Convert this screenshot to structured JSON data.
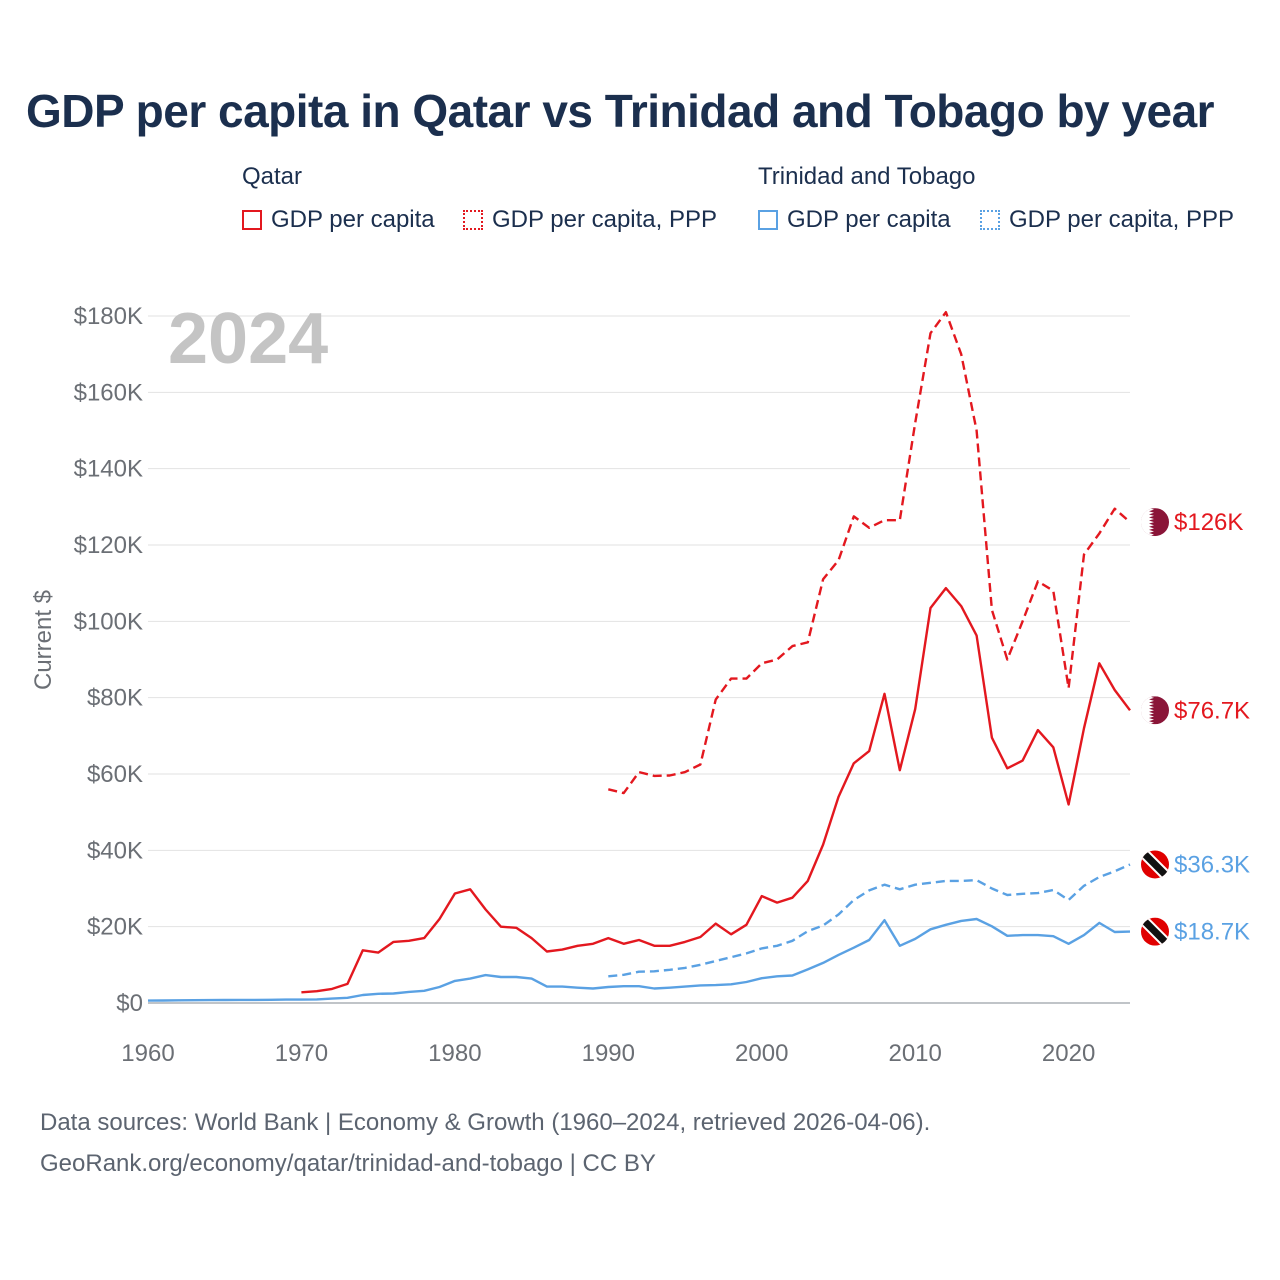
{
  "title": "GDP per capita in Qatar vs Trinidad and Tobago by year",
  "legend": {
    "groups": [
      {
        "name": "Qatar",
        "items": [
          "GDP per capita",
          "GDP per capita, PPP"
        ]
      },
      {
        "name": "Trinidad and Tobago",
        "items": [
          "GDP per capita",
          "GDP per capita, PPP"
        ]
      }
    ]
  },
  "colors": {
    "qatar": "#e3181f",
    "trinidad": "#5aa1e3",
    "title": "#1b2f4e",
    "year": "#c4c4c4",
    "axis_text": "#6b6f75"
  },
  "footer": {
    "line1": "Data sources: World Bank | Economy & Growth (1960–2024, retrieved 2026-04-06).",
    "line2": "GeoRank.org/economy/qatar/trinidad-and-tobago | CC BY"
  },
  "chart_data": {
    "type": "line",
    "title": "GDP per capita in Qatar vs Trinidad and Tobago by year",
    "year_label": "2024",
    "xlabel": "",
    "ylabel": "Current $",
    "xlim": [
      1960,
      2024
    ],
    "ylim": [
      0,
      180000
    ],
    "x_ticks": [
      1960,
      1970,
      1980,
      1990,
      2000,
      2010,
      2020
    ],
    "x_tick_labels": [
      "1960",
      "1970",
      "1980",
      "1990",
      "2000",
      "2010",
      "2020"
    ],
    "y_ticks": [
      0,
      20000,
      40000,
      60000,
      80000,
      100000,
      120000,
      140000,
      160000,
      180000
    ],
    "y_tick_labels": [
      "$0",
      "$20K",
      "$40K",
      "$60K",
      "$80K",
      "$100K",
      "$120K",
      "$140K",
      "$160K",
      "$180K"
    ],
    "grid": true,
    "series": [
      {
        "name": "Qatar GDP per capita",
        "country": "Qatar",
        "style": "solid",
        "end_label": "$76.7K",
        "x": [
          1970,
          1971,
          1972,
          1973,
          1974,
          1975,
          1976,
          1977,
          1978,
          1979,
          1980,
          1981,
          1982,
          1983,
          1984,
          1985,
          1986,
          1987,
          1988,
          1989,
          1990,
          1991,
          1992,
          1993,
          1994,
          1995,
          1996,
          1997,
          1998,
          1999,
          2000,
          2001,
          2002,
          2003,
          2004,
          2005,
          2006,
          2007,
          2008,
          2009,
          2010,
          2011,
          2012,
          2013,
          2014,
          2015,
          2016,
          2017,
          2018,
          2019,
          2020,
          2021,
          2022,
          2023,
          2024
        ],
        "y": [
          2800,
          3100,
          3700,
          5000,
          13800,
          13200,
          16000,
          16300,
          17000,
          22000,
          28700,
          29800,
          24500,
          20000,
          19700,
          17000,
          13500,
          14000,
          15000,
          15500,
          17000,
          15500,
          16500,
          15000,
          15000,
          16000,
          17300,
          20800,
          18000,
          20500,
          28000,
          26300,
          27600,
          32000,
          41500,
          54000,
          62800,
          66000,
          81000,
          61000,
          77000,
          103500,
          108700,
          104000,
          96300,
          69500,
          61500,
          63500,
          71500,
          67000,
          52000,
          72000,
          89000,
          82000,
          76700
        ]
      },
      {
        "name": "Qatar GDP per capita, PPP",
        "country": "Qatar",
        "style": "dashed",
        "end_label": "$126K",
        "x": [
          1990,
          1991,
          1992,
          1993,
          1994,
          1995,
          1996,
          1997,
          1998,
          1999,
          2000,
          2001,
          2002,
          2003,
          2004,
          2005,
          2006,
          2007,
          2008,
          2009,
          2010,
          2011,
          2012,
          2013,
          2014,
          2015,
          2016,
          2017,
          2018,
          2019,
          2020,
          2021,
          2022,
          2023,
          2024
        ],
        "y": [
          56000,
          55000,
          60500,
          59500,
          59600,
          60500,
          62500,
          79500,
          85000,
          85000,
          89000,
          90000,
          93500,
          94500,
          111000,
          116000,
          127500,
          124500,
          126500,
          126500,
          152000,
          175500,
          181000,
          170000,
          150000,
          103000,
          90000,
          100000,
          110500,
          108000,
          82500,
          117500,
          123000,
          129500,
          126000
        ]
      },
      {
        "name": "Trinidad and Tobago GDP per capita",
        "country": "Trinidad and Tobago",
        "style": "solid",
        "end_label": "$18.7K",
        "x": [
          1960,
          1961,
          1962,
          1963,
          1964,
          1965,
          1966,
          1967,
          1968,
          1969,
          1970,
          1971,
          1972,
          1973,
          1974,
          1975,
          1976,
          1977,
          1978,
          1979,
          1980,
          1981,
          1982,
          1983,
          1984,
          1985,
          1986,
          1987,
          1988,
          1989,
          1990,
          1991,
          1992,
          1993,
          1994,
          1995,
          1996,
          1997,
          1998,
          1999,
          2000,
          2001,
          2002,
          2003,
          2004,
          2005,
          2006,
          2007,
          2008,
          2009,
          2010,
          2011,
          2012,
          2013,
          2014,
          2015,
          2016,
          2017,
          2018,
          2019,
          2020,
          2021,
          2022,
          2023,
          2024
        ],
        "y": [
          630,
          660,
          700,
          740,
          760,
          780,
          800,
          820,
          840,
          880,
          900,
          950,
          1150,
          1350,
          2100,
          2400,
          2500,
          2900,
          3200,
          4200,
          5800,
          6400,
          7300,
          6800,
          6800,
          6400,
          4300,
          4300,
          4000,
          3800,
          4200,
          4400,
          4400,
          3800,
          4000,
          4300,
          4600,
          4700,
          4900,
          5500,
          6500,
          7000,
          7200,
          8800,
          10500,
          12600,
          14500,
          16500,
          21700,
          15000,
          16800,
          19300,
          20500,
          21500,
          22000,
          20100,
          17600,
          17800,
          17800,
          17500,
          15500,
          17800,
          21000,
          18600,
          18700
        ]
      },
      {
        "name": "Trinidad and Tobago GDP per capita, PPP",
        "country": "Trinidad and Tobago",
        "style": "dashed",
        "end_label": "$36.3K",
        "x": [
          1990,
          1991,
          1992,
          1993,
          1994,
          1995,
          1996,
          1997,
          1998,
          1999,
          2000,
          2001,
          2002,
          2003,
          2004,
          2005,
          2006,
          2007,
          2008,
          2009,
          2010,
          2011,
          2012,
          2013,
          2014,
          2015,
          2016,
          2017,
          2018,
          2019,
          2020,
          2021,
          2022,
          2023,
          2024
        ],
        "y": [
          7000,
          7400,
          8200,
          8300,
          8700,
          9200,
          10000,
          11000,
          12000,
          13000,
          14300,
          15000,
          16300,
          18800,
          20300,
          23200,
          27000,
          29500,
          31000,
          29800,
          31000,
          31500,
          32000,
          32000,
          32200,
          30000,
          28300,
          28600,
          28800,
          29600,
          27000,
          30700,
          33000,
          34500,
          36300
        ]
      }
    ]
  }
}
